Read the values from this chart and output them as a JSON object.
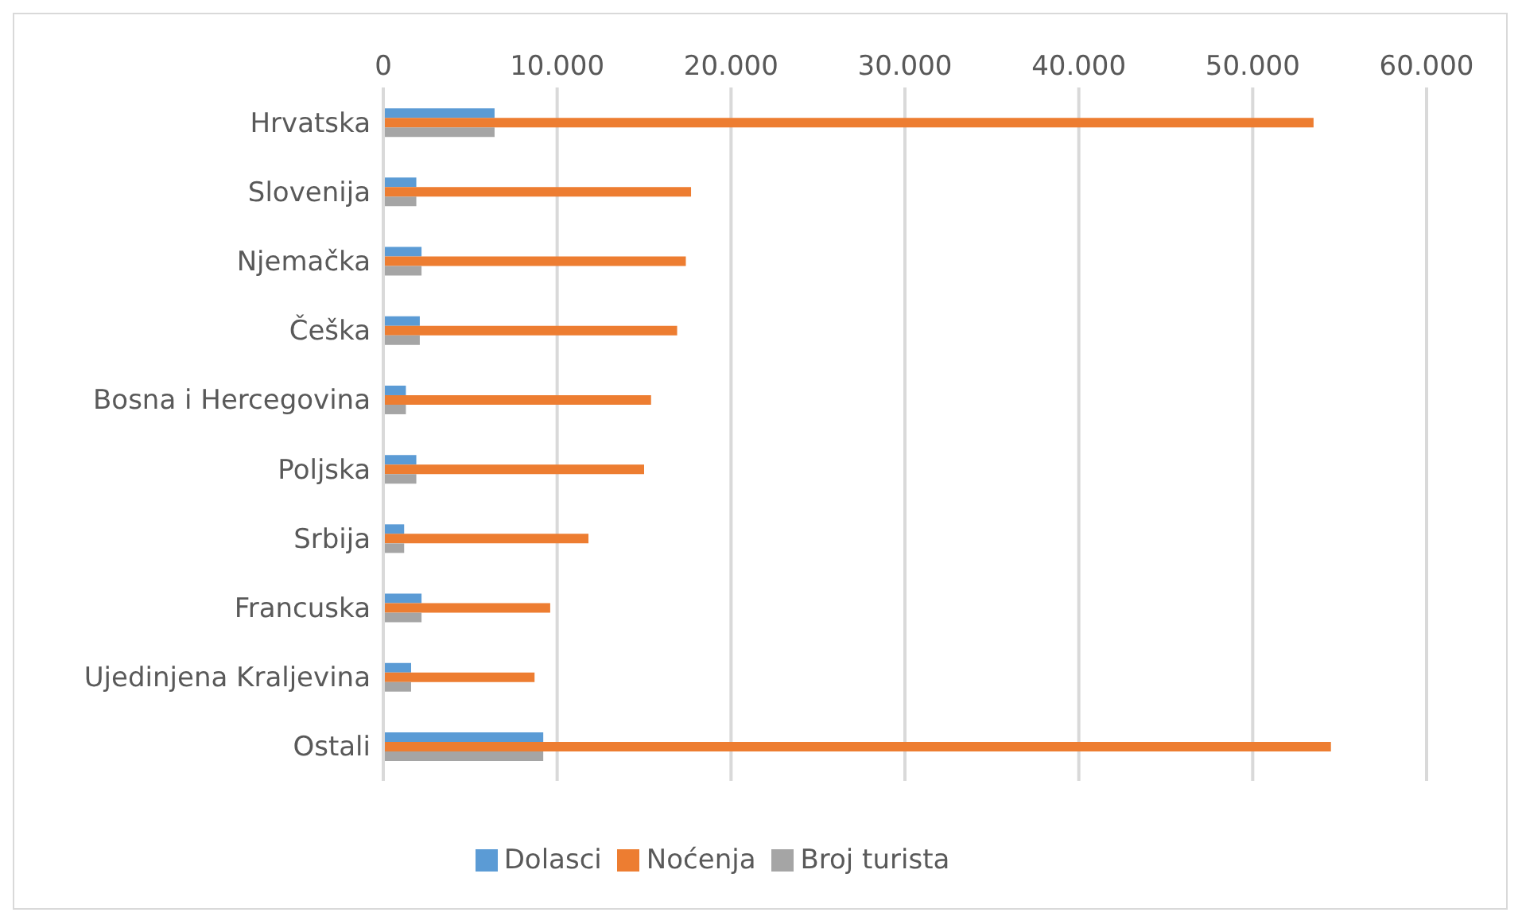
{
  "chart_data": {
    "type": "bar",
    "orientation": "horizontal",
    "categories": [
      "Hrvatska",
      "Slovenija",
      "Njemačka",
      "Češka",
      "Bosna i Hercegovina",
      "Poljska",
      "Srbija",
      "Francuska",
      "Ujedinjena Kraljevina",
      "Ostali"
    ],
    "series": [
      {
        "name": "Dolasci",
        "color": "#5b9bd5",
        "values": [
          6400,
          1900,
          2200,
          2100,
          1300,
          1900,
          1200,
          2200,
          1600,
          9200
        ]
      },
      {
        "name": "Noćenja",
        "color": "#ed7d31",
        "values": [
          53500,
          17700,
          17400,
          16900,
          15400,
          15000,
          11800,
          9600,
          8700,
          54500
        ]
      },
      {
        "name": "Broj turista",
        "color": "#a5a5a5",
        "values": [
          6400,
          1900,
          2200,
          2100,
          1300,
          1900,
          1200,
          2200,
          1600,
          9200
        ]
      }
    ],
    "xlim": [
      0,
      60000
    ],
    "xticks": [
      {
        "value": 0,
        "label": "0"
      },
      {
        "value": 10000,
        "label": "10.000"
      },
      {
        "value": 20000,
        "label": "20.000"
      },
      {
        "value": 30000,
        "label": "30.000"
      },
      {
        "value": 40000,
        "label": "40.000"
      },
      {
        "value": 50000,
        "label": "50.000"
      },
      {
        "value": 60000,
        "label": "60.000"
      }
    ],
    "grid": "x",
    "legend": "bottom"
  }
}
